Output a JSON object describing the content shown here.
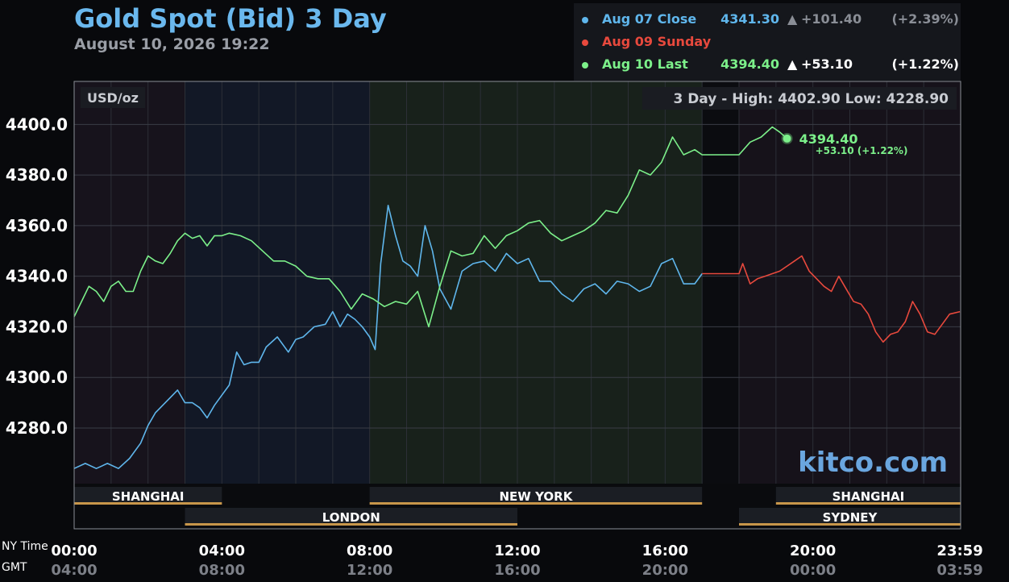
{
  "header": {
    "title": "Gold Spot (Bid) 3 Day",
    "subtitle": "August 10, 2026 19:22"
  },
  "legend": [
    {
      "label": "Aug 07 Close",
      "value": "4341.30",
      "arrow": "▲",
      "change": "+101.40",
      "pct": "(+2.39%)",
      "color": "#5fb6ec",
      "arrow_color": "#8a8e96"
    },
    {
      "label": "Aug 09 Sunday",
      "value": "",
      "arrow": "",
      "change": "",
      "pct": "",
      "color": "#e8493d",
      "arrow_color": "#ffffff"
    },
    {
      "label": "Aug 10 Last",
      "value": "4394.40",
      "arrow": "▲",
      "change": "+53.10",
      "pct": "(+1.22%)",
      "color": "#7cf08a",
      "arrow_color": "#ffffff"
    }
  ],
  "chart_labels": {
    "unit": "USD/oz",
    "range_text": "3 Day - High: 4402.90  Low: 4228.90",
    "watermark": "kitco.com",
    "last_price": "4394.40",
    "last_change": "+53.10 (+1.22%)",
    "ny_time_label": "NY Time",
    "gmt_label": "GMT"
  },
  "colors": {
    "aug07": "#5fb6ec",
    "sunday": "#e8493d",
    "aug10": "#7cf08a",
    "session_bar": "#c8964a"
  },
  "sessions": [
    {
      "name": "SHANGHAI",
      "row": 1,
      "start": 0.0,
      "end": 4.0
    },
    {
      "name": "NEW YORK",
      "row": 1,
      "start": 8.0,
      "end": 17.0
    },
    {
      "name": "SHANGHAI",
      "row": 1,
      "start": 19.0,
      "end": 24.0
    },
    {
      "name": "LONDON",
      "row": 2,
      "start": 3.0,
      "end": 12.0
    },
    {
      "name": "SYDNEY",
      "row": 2,
      "start": 18.0,
      "end": 24.0
    }
  ],
  "chart_data": {
    "type": "line",
    "title": "Gold Spot (Bid) 3 Day",
    "ylabel": "USD/oz",
    "ylim": [
      4258,
      4417
    ],
    "xlim": [
      0,
      24
    ],
    "y_ticks": [
      4280.0,
      4300.0,
      4320.0,
      4340.0,
      4360.0,
      4380.0,
      4400.0
    ],
    "y_tick_labels": [
      "4280.0",
      "4300.0",
      "4320.0",
      "4340.0",
      "4360.0",
      "4380.0",
      "4400.0"
    ],
    "x_ticks": [
      0,
      4,
      8,
      12,
      16,
      20,
      23.98
    ],
    "x_tick_labels_ny": [
      "00:00",
      "04:00",
      "08:00",
      "12:00",
      "16:00",
      "20:00",
      "23:59"
    ],
    "x_tick_labels_gmt": [
      "04:00",
      "08:00",
      "12:00",
      "16:00",
      "20:00",
      "00:00",
      "03:59"
    ],
    "high": 4402.9,
    "low": 4228.9,
    "grid": true,
    "series": [
      {
        "name": "Aug 07 Close",
        "x": [
          0,
          0.3,
          0.6,
          0.9,
          1.2,
          1.5,
          1.8,
          2.0,
          2.2,
          2.4,
          2.6,
          2.8,
          3.0,
          3.2,
          3.4,
          3.6,
          3.8,
          4.0,
          4.2,
          4.4,
          4.6,
          4.8,
          5.0,
          5.2,
          5.5,
          5.8,
          6.0,
          6.2,
          6.5,
          6.8,
          7.0,
          7.2,
          7.4,
          7.6,
          7.8,
          8.0,
          8.15,
          8.3,
          8.5,
          8.7,
          8.9,
          9.1,
          9.3,
          9.5,
          9.7,
          9.9,
          10.2,
          10.5,
          10.8,
          11.1,
          11.4,
          11.7,
          12.0,
          12.3,
          12.6,
          12.9,
          13.2,
          13.5,
          13.8,
          14.1,
          14.4,
          14.7,
          15.0,
          15.3,
          15.6,
          15.9,
          16.2,
          16.5,
          16.8,
          17.0
        ],
        "y": [
          4264,
          4266,
          4264,
          4266,
          4264,
          4268,
          4274,
          4281,
          4286,
          4289,
          4292,
          4295,
          4290,
          4290,
          4288,
          4284,
          4289,
          4293,
          4297,
          4310,
          4305,
          4306,
          4306,
          4312,
          4316,
          4310,
          4315,
          4316,
          4320,
          4321,
          4326,
          4320,
          4325,
          4323,
          4320,
          4316,
          4311,
          4345,
          4368,
          4356,
          4346,
          4344,
          4340,
          4360,
          4350,
          4335,
          4327,
          4342,
          4345,
          4346,
          4342,
          4349,
          4345,
          4347,
          4338,
          4338,
          4333,
          4330,
          4335,
          4337,
          4333,
          4338,
          4337,
          4334,
          4336,
          4345,
          4347,
          4337,
          4337,
          4341
        ]
      },
      {
        "name": "Aug 09 Sunday",
        "x": [
          17.0,
          18.0,
          18.1,
          18.3,
          18.5,
          18.7,
          18.9,
          19.1,
          19.3,
          19.5,
          19.7,
          19.9,
          20.1,
          20.3,
          20.5,
          20.7,
          20.9,
          21.1,
          21.3,
          21.5,
          21.7,
          21.9,
          22.1,
          22.3,
          22.5,
          22.7,
          22.9,
          23.1,
          23.3,
          23.5,
          23.7,
          23.98
        ],
        "y": [
          4341,
          4341,
          4345,
          4337,
          4339,
          4340,
          4341,
          4342,
          4344,
          4346,
          4348,
          4342,
          4339,
          4336,
          4334,
          4340,
          4335,
          4330,
          4329,
          4325,
          4318,
          4314,
          4317,
          4318,
          4322,
          4330,
          4325,
          4318,
          4317,
          4321,
          4325,
          4326
        ]
      },
      {
        "name": "Aug 10 Last",
        "x": [
          0,
          0.2,
          0.4,
          0.6,
          0.8,
          1.0,
          1.2,
          1.4,
          1.6,
          1.8,
          2.0,
          2.2,
          2.4,
          2.6,
          2.8,
          3.0,
          3.2,
          3.4,
          3.6,
          3.8,
          4.0,
          4.2,
          4.5,
          4.8,
          5.1,
          5.4,
          5.7,
          6.0,
          6.3,
          6.6,
          6.9,
          7.2,
          7.5,
          7.8,
          8.1,
          8.4,
          8.7,
          9.0,
          9.3,
          9.6,
          9.9,
          10.2,
          10.5,
          10.8,
          11.1,
          11.4,
          11.7,
          12.0,
          12.3,
          12.6,
          12.9,
          13.2,
          13.5,
          13.8,
          14.1,
          14.4,
          14.7,
          15.0,
          15.3,
          15.6,
          15.9,
          16.2,
          16.5,
          16.8,
          17.0,
          17.5,
          18.0,
          18.3,
          18.6,
          18.9,
          19.1,
          19.3
        ],
        "y": [
          4324,
          4330,
          4336,
          4334,
          4330,
          4336,
          4338,
          4334,
          4334,
          4342,
          4348,
          4346,
          4345,
          4349,
          4354,
          4357,
          4355,
          4356,
          4352,
          4356,
          4356,
          4357,
          4356,
          4354,
          4350,
          4346,
          4346,
          4344,
          4340,
          4339,
          4339,
          4334,
          4327,
          4333,
          4331,
          4328,
          4330,
          4329,
          4334,
          4320,
          4336,
          4350,
          4348,
          4349,
          4356,
          4351,
          4356,
          4358,
          4361,
          4362,
          4357,
          4354,
          4356,
          4358,
          4361,
          4366,
          4365,
          4372,
          4382,
          4380,
          4385,
          4395,
          4388,
          4390,
          4388,
          4388,
          4388,
          4393,
          4395,
          4399,
          4397,
          4394.4
        ]
      }
    ]
  }
}
